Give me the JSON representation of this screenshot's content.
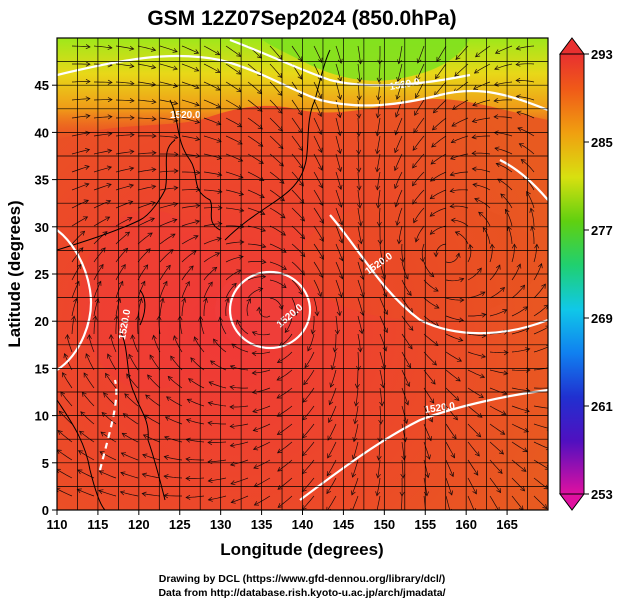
{
  "title": "GSM 12Z07Sep2024 (850.0hPa)",
  "map": {
    "xlabel": "Longitude (degrees)",
    "ylabel": "Latitude  (degrees)",
    "lon_ticks": [
      "110",
      "115",
      "120",
      "125",
      "130",
      "135",
      "140",
      "145",
      "150",
      "155",
      "160",
      "165"
    ],
    "lat_ticks": [
      "0",
      "5",
      "10",
      "15",
      "20",
      "25",
      "30",
      "35",
      "40",
      "45"
    ],
    "lon_range": [
      110,
      170
    ],
    "lat_range": [
      0,
      50
    ]
  },
  "colorbar": {
    "ticks": [
      "293",
      "285",
      "277",
      "269",
      "261",
      "253"
    ],
    "range": [
      253,
      293
    ],
    "colors": [
      "#e0109a",
      "#3a1fb0",
      "#1f6fe0",
      "#18c0e0",
      "#18d060",
      "#90e010",
      "#f0d010",
      "#f09010",
      "#e84a10",
      "#e02828"
    ]
  },
  "contours": {
    "label_1": "1520.0",
    "label_2": "1520.0",
    "label_3": "1520.0",
    "label_4": "1520.0",
    "label_5": "1520.0",
    "label_6": "1520.0"
  },
  "credits": {
    "line1": "Drawing by DCL (https://www.gfd-dennou.org/library/dcl/)",
    "line2": "Data from http://database.rish.kyoto-u.ac.jp/arch/jmadata/"
  }
}
